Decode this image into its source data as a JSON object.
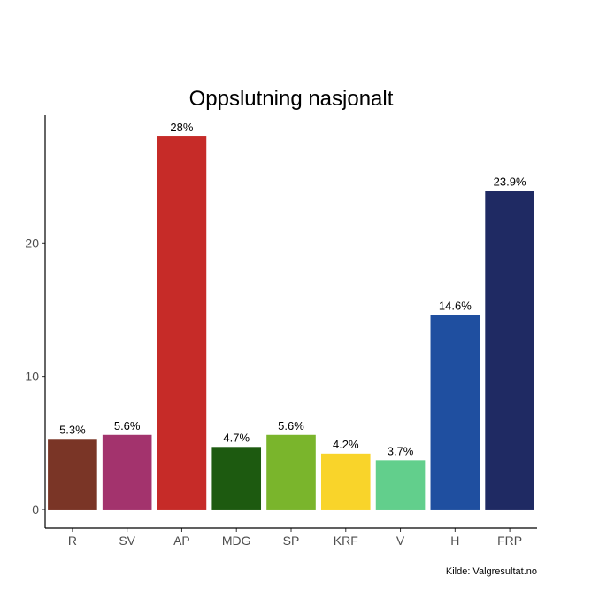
{
  "chart_data": {
    "type": "bar",
    "title": "Oppslutning nasjonalt",
    "xlabel": "",
    "ylabel": "",
    "categories": [
      "R",
      "SV",
      "AP",
      "MDG",
      "SP",
      "KRF",
      "V",
      "H",
      "FRP"
    ],
    "values": [
      5.3,
      5.6,
      28,
      4.7,
      5.6,
      4.2,
      3.7,
      14.6,
      23.9
    ],
    "data_labels": [
      "5.3%",
      "5.6%",
      "28%",
      "4.7%",
      "5.6%",
      "4.2%",
      "3.7%",
      "14.6%",
      "23.9%"
    ],
    "colors": [
      "#7a3526",
      "#a3336d",
      "#c62b28",
      "#1d5a10",
      "#7ab52c",
      "#f9d42a",
      "#62cf8c",
      "#1f4fa0",
      "#1f2a63"
    ],
    "y_ticks": [
      0,
      10,
      20
    ],
    "ylim": [
      -1.4,
      29.6
    ],
    "grid": false,
    "caption": "Kilde: Valgresultat.no"
  }
}
